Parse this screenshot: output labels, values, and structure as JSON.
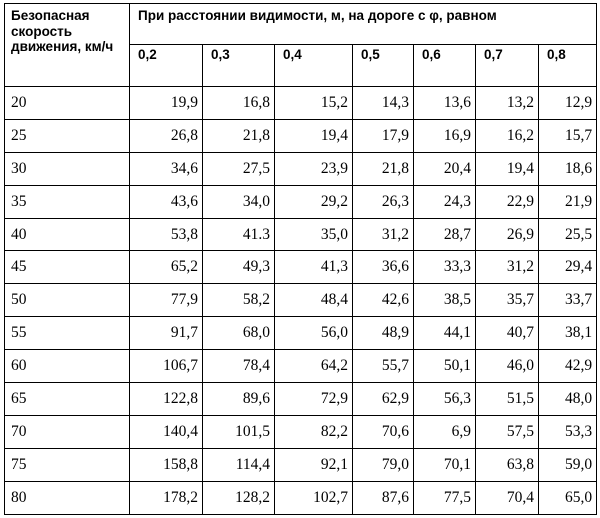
{
  "table": {
    "corner_header": "Безопасная скорость движения, км/ч",
    "span_header": "При расстоянии видимости, м, на дороге с φ, равном",
    "phi_values": [
      "0,2",
      "0,3",
      "0,4",
      "0,5",
      "0,6",
      "0,7",
      "0,8"
    ],
    "rows": [
      {
        "speed": "20",
        "values": [
          "19,9",
          "16,8",
          "15,2",
          "14,3",
          "13,6",
          "13,2",
          "12,9"
        ]
      },
      {
        "speed": "25",
        "values": [
          "26,8",
          "21,8",
          "19,4",
          "17,9",
          "16,9",
          "16,2",
          "15,7"
        ]
      },
      {
        "speed": "30",
        "values": [
          "34,6",
          "27,5",
          "23,9",
          "21,8",
          "20,4",
          "19,4",
          "18,6"
        ]
      },
      {
        "speed": "35",
        "values": [
          "43,6",
          "34,0",
          "29,2",
          "26,3",
          "24,3",
          "22,9",
          "21,9"
        ]
      },
      {
        "speed": "40",
        "values": [
          "53,8",
          "41.3",
          "35,0",
          "31,2",
          "28,7",
          "26,9",
          "25,5"
        ]
      },
      {
        "speed": "45",
        "values": [
          "65,2",
          "49,3",
          "41,3",
          "36,6",
          "33,3",
          "31,2",
          "29,4"
        ]
      },
      {
        "speed": "50",
        "values": [
          "77,9",
          "58,2",
          "48,4",
          "42,6",
          "38,5",
          "35,7",
          "33,7"
        ]
      },
      {
        "speed": "55",
        "values": [
          "91,7",
          "68,0",
          "56,0",
          "48,9",
          "44,1",
          "40,7",
          "38,1"
        ]
      },
      {
        "speed": "60",
        "values": [
          "106,7",
          "78,4",
          "64,2",
          "55,7",
          "50,1",
          "46,0",
          "42,9"
        ]
      },
      {
        "speed": "65",
        "values": [
          "122,8",
          "89,6",
          "72,9",
          "62,9",
          "56,3",
          "51,5",
          "48,0"
        ]
      },
      {
        "speed": "70",
        "values": [
          "140,4",
          "101,5",
          "82,2",
          "70,6",
          "6,9",
          "57,5",
          "53,3"
        ]
      },
      {
        "speed": "75",
        "values": [
          "158,8",
          "114,4",
          "92,1",
          "79,0",
          "70,1",
          "63,8",
          "59,0"
        ]
      },
      {
        "speed": "80",
        "values": [
          "178,2",
          "128,2",
          "102,7",
          "87,6",
          "77,5",
          "70,4",
          "65,0"
        ]
      }
    ]
  }
}
